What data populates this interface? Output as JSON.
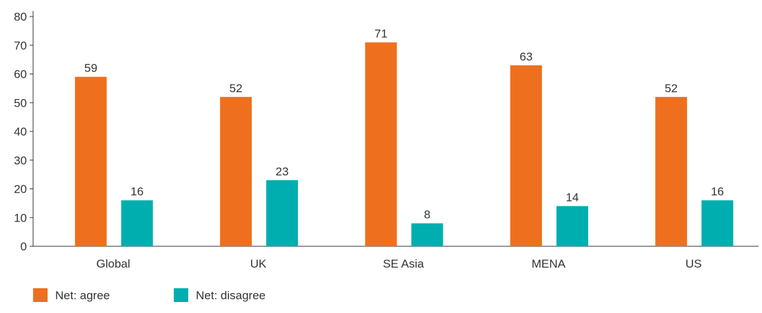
{
  "chart_data": {
    "type": "bar",
    "categories": [
      "Global",
      "UK",
      "SE Asia",
      "MENA",
      "US"
    ],
    "series": [
      {
        "name": "Net: agree",
        "color": "#EE701E",
        "values": [
          59,
          52,
          71,
          63,
          52
        ]
      },
      {
        "name": "Net: disagree",
        "color": "#00AEAF",
        "values": [
          16,
          23,
          8,
          14,
          16
        ]
      }
    ],
    "ylim": [
      0,
      80
    ],
    "yticks": [
      0,
      10,
      20,
      30,
      40,
      50,
      60,
      70,
      80
    ],
    "grid": false,
    "legend": "bottom-left",
    "axis_color": "#333333"
  }
}
